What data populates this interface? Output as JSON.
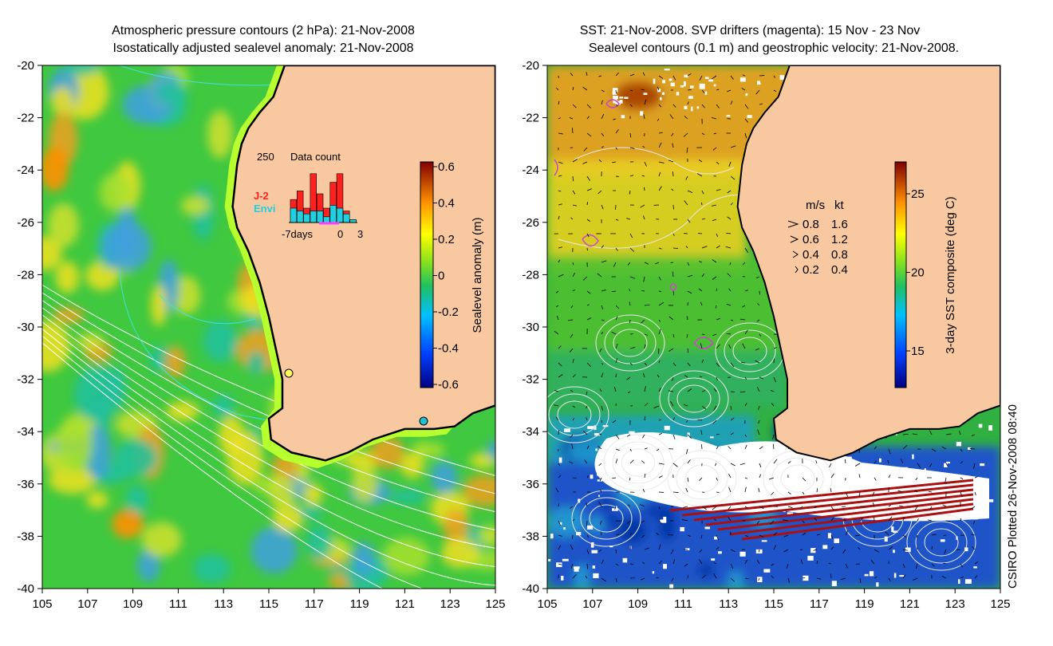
{
  "left_panel": {
    "title_line1": "Atmospheric pressure contours (2 hPa): 21-Nov-2008",
    "title_line2": "Isostatically adjusted sealevel anomaly: 21-Nov-2008",
    "colorbar": {
      "label": "Sealevel anomaly (m)",
      "ticks": [
        "0.6",
        "0.4",
        "0.2",
        "0",
        "-0.2",
        "-0.4",
        "-0.6"
      ]
    },
    "inset": {
      "scale_label": "250",
      "title": "Data count",
      "series": [
        {
          "name": "J-2",
          "color": "#ff2020"
        },
        {
          "name": "Envi",
          "color": "#20d0e0"
        }
      ],
      "x_labels": [
        "-7days",
        "0",
        "3"
      ],
      "bars_j2": [
        0.4,
        0.55,
        0.25,
        0.85,
        0.5,
        0.25,
        0.7,
        0.85,
        0.2,
        0.05
      ],
      "bars_envi": [
        0.25,
        0.2,
        0.15,
        0.2,
        0.2,
        0.1,
        0.3,
        0.25,
        0.15,
        0.05
      ]
    }
  },
  "right_panel": {
    "title_line1": "SST: 21-Nov-2008. SVP drifters (magenta): 15 Nov - 23 Nov",
    "title_line2": "Sealevel contours (0.1 m) and geostrophic velocity: 21-Nov-2008.",
    "colorbar": {
      "label": "3-day SST composite (deg C)",
      "ticks": [
        "25",
        "20",
        "15"
      ]
    },
    "velocity_legend": {
      "header_ms": "m/s",
      "header_kt": "kt",
      "rows": [
        {
          "ms": "0.8",
          "kt": "1.6"
        },
        {
          "ms": "0.6",
          "kt": "1.2"
        },
        {
          "ms": "0.4",
          "kt": "0.8"
        },
        {
          "ms": "0.2",
          "kt": "0.4"
        }
      ]
    }
  },
  "axes": {
    "y_ticks": [
      "-20",
      "-22",
      "-24",
      "-26",
      "-28",
      "-30",
      "-32",
      "-34",
      "-36",
      "-38",
      "-40"
    ],
    "x_ticks": [
      "105",
      "107",
      "109",
      "111",
      "113",
      "115",
      "117",
      "119",
      "121",
      "123",
      "125"
    ],
    "lon_range": [
      105,
      125
    ],
    "lat_range": [
      -40,
      -20
    ]
  },
  "credit": "CSIRO Plotted 26-Nov-2008 08:40",
  "colors": {
    "land": "#f8c9a0",
    "cloud": "#ffffff",
    "coast_line": "#000000",
    "pressure_contour": "#ffffff",
    "cyan_contour": "#40e0e0",
    "drifter": "#cc44cc",
    "track_red": "#aa1010"
  }
}
